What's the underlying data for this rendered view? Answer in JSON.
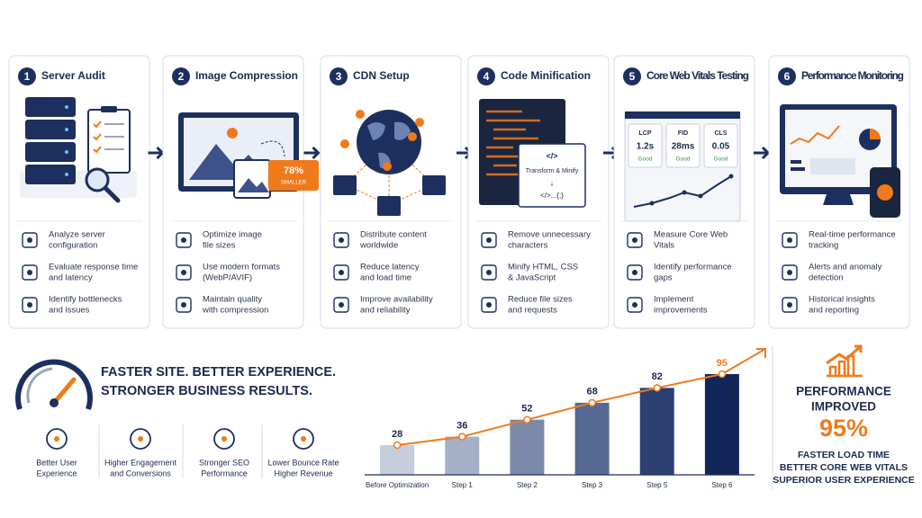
{
  "steps": [
    {
      "number": 1,
      "title": "Server Audit",
      "items": [
        [
          "Analyze server",
          "configuration"
        ],
        [
          "Evaluate response time",
          "and latency"
        ],
        [
          "Identify bottlenecks",
          "and issues"
        ]
      ]
    },
    {
      "number": 2,
      "title": "Image Compression",
      "items": [
        [
          "Optimize image",
          "file sizes"
        ],
        [
          "Use modern formats",
          "(WebP/AVIF)"
        ],
        [
          "Maintain quality",
          "with compression"
        ]
      ]
    },
    {
      "number": 3,
      "title": "CDN Setup",
      "items": [
        [
          "Distribute content",
          "worldwide"
        ],
        [
          "Reduce latency",
          "and load time"
        ],
        [
          "Improve availability",
          "and reliability"
        ]
      ]
    },
    {
      "number": 4,
      "title": "Code Minification",
      "items": [
        [
          "Remove unnecessary",
          "characters"
        ],
        [
          "Minify HTML, CSS",
          "& JavaScript"
        ],
        [
          "Reduce file sizes",
          "and requests"
        ]
      ]
    },
    {
      "number": 5,
      "title": "Core Web Vitals Testing",
      "items": [
        [
          "Measure Core Web",
          "Vitals"
        ],
        [
          "Identify performance",
          "gaps"
        ],
        [
          "Implement",
          "improvements"
        ]
      ]
    },
    {
      "number": 6,
      "title": "Performance Monitoring",
      "items": [
        [
          "Real-time performance",
          "tracking"
        ],
        [
          "Alerts and anomaly",
          "detection"
        ],
        [
          "Historical insights",
          "and reporting"
        ]
      ]
    }
  ],
  "illustrations": {
    "compression_badge": [
      "78%",
      "SMALLER"
    ],
    "minify_box": [
      "</>",
      "Transform & Minify",
      "↓",
      "</>...{;}"
    ],
    "vitals": [
      {
        "metric": "LCP",
        "value": "1.2s",
        "status": "Good"
      },
      {
        "metric": "FID",
        "value": "28ms",
        "status": "Good"
      },
      {
        "metric": "CLS",
        "value": "0.05",
        "status": "Good"
      }
    ]
  },
  "headline": [
    "FASTER SITE. BETTER EXPERIENCE.",
    "STRONGER BUSINESS RESULTS."
  ],
  "benefits": [
    [
      "Better User",
      "Experience"
    ],
    [
      "Higher Engagement",
      "and Conversions"
    ],
    [
      "Stronger SEO",
      "Performance"
    ],
    [
      "Lower Bounce Rate",
      "Higher Revenue"
    ]
  ],
  "chart_data": {
    "type": "bar",
    "categories": [
      "Before Optimization",
      "Step 1",
      "Step 2",
      "Step 3",
      "Step 5",
      "Step 6"
    ],
    "values": [
      28,
      36,
      52,
      68,
      82,
      95
    ],
    "colors": [
      "#c6cddb",
      "#a5b0c6",
      "#7b8aa9",
      "#566993",
      "#2d4072",
      "#13265a"
    ],
    "trend_color": "#f07a1a"
  },
  "summary": {
    "title": [
      "PERFORMANCE",
      "IMPROVED"
    ],
    "highlight": "95%",
    "points": [
      "FASTER LOAD TIME",
      "BETTER CORE WEB VITALS",
      "SUPERIOR USER EXPERIENCE"
    ]
  }
}
